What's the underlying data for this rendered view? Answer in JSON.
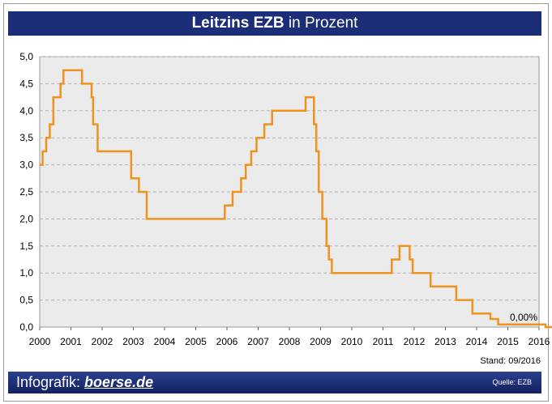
{
  "header": {
    "title_bold": "Leitzins EZB",
    "title_rest": " in Prozent"
  },
  "stand": "Stand: 09/2016",
  "footer": {
    "prefix": "Infografik: ",
    "brand": "boerse.de",
    "source": "Quelle: EZB"
  },
  "colors": {
    "line": "#f0921e",
    "title_bg": "#1c2e78",
    "plot_bg": "#ebebeb",
    "grid": "#b4b4b4"
  },
  "chart_data": {
    "type": "line",
    "step": true,
    "title": "Leitzins EZB in Prozent",
    "xlim": [
      2000,
      2016
    ],
    "ylim": [
      0,
      5
    ],
    "grid": true,
    "x_ticks": [
      "2000",
      "2001",
      "2002",
      "2003",
      "2004",
      "2005",
      "2006",
      "2007",
      "2008",
      "2009",
      "2010",
      "2011",
      "2012",
      "2013",
      "2014",
      "2015",
      "2016"
    ],
    "y_ticks": [
      "0,0",
      "0,5",
      "1,0",
      "1,5",
      "2,0",
      "2,5",
      "3,0",
      "3,5",
      "4,0",
      "4,5",
      "5,0"
    ],
    "annotation": {
      "text": "0,00%",
      "x": 2016,
      "y": 0
    },
    "series": [
      {
        "x": [
          "2000-01-01",
          "2000-02-04",
          "2000-03-17",
          "2000-04-28",
          "2000-06-09",
          "2000-09-01",
          "2000-10-06",
          "2001-05-11",
          "2001-08-31",
          "2001-09-18",
          "2001-11-09",
          "2002-12-06",
          "2003-03-07",
          "2003-06-06",
          "2005-12-06",
          "2006-03-08",
          "2006-06-15",
          "2006-08-09",
          "2006-10-11",
          "2006-12-13",
          "2007-03-14",
          "2007-06-13",
          "2008-07-09",
          "2008-10-15",
          "2008-11-12",
          "2008-12-10",
          "2009-01-21",
          "2009-03-11",
          "2009-04-08",
          "2009-05-13",
          "2011-04-13",
          "2011-07-13",
          "2011-11-09",
          "2011-12-14",
          "2012-07-11",
          "2013-05-08",
          "2013-11-13",
          "2014-06-11",
          "2014-09-10",
          "2015-12-09",
          "2016-03-16",
          "2016-09-30"
        ],
        "values": [
          3.0,
          3.25,
          3.5,
          3.75,
          4.25,
          4.5,
          4.75,
          4.5,
          4.25,
          3.75,
          3.25,
          2.75,
          2.5,
          2.0,
          2.25,
          2.5,
          2.75,
          3.0,
          3.25,
          3.5,
          3.75,
          4.0,
          4.25,
          3.75,
          3.25,
          2.5,
          2.0,
          1.5,
          1.25,
          1.0,
          1.25,
          1.5,
          1.25,
          1.0,
          0.75,
          0.5,
          0.25,
          0.15,
          0.05,
          0.05,
          0.0,
          0.0
        ]
      }
    ]
  }
}
